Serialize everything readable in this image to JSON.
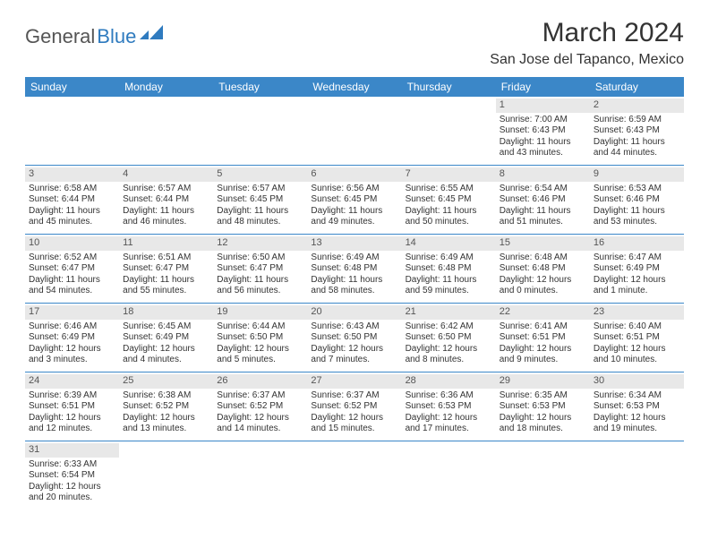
{
  "header": {
    "logo_general": "General",
    "logo_blue": "Blue",
    "month_title": "March 2024",
    "location": "San Jose del Tapanco, Mexico"
  },
  "style": {
    "header_bg": "#3b87c8",
    "header_text": "#ffffff",
    "daynum_bg": "#e8e8e8",
    "row_border": "#3b87c8",
    "text_color": "#333333"
  },
  "weekdays": [
    "Sunday",
    "Monday",
    "Tuesday",
    "Wednesday",
    "Thursday",
    "Friday",
    "Saturday"
  ],
  "weeks": [
    [
      null,
      null,
      null,
      null,
      null,
      {
        "n": "1",
        "sr": "Sunrise: 7:00 AM",
        "ss": "Sunset: 6:43 PM",
        "d1": "Daylight: 11 hours",
        "d2": "and 43 minutes."
      },
      {
        "n": "2",
        "sr": "Sunrise: 6:59 AM",
        "ss": "Sunset: 6:43 PM",
        "d1": "Daylight: 11 hours",
        "d2": "and 44 minutes."
      }
    ],
    [
      {
        "n": "3",
        "sr": "Sunrise: 6:58 AM",
        "ss": "Sunset: 6:44 PM",
        "d1": "Daylight: 11 hours",
        "d2": "and 45 minutes."
      },
      {
        "n": "4",
        "sr": "Sunrise: 6:57 AM",
        "ss": "Sunset: 6:44 PM",
        "d1": "Daylight: 11 hours",
        "d2": "and 46 minutes."
      },
      {
        "n": "5",
        "sr": "Sunrise: 6:57 AM",
        "ss": "Sunset: 6:45 PM",
        "d1": "Daylight: 11 hours",
        "d2": "and 48 minutes."
      },
      {
        "n": "6",
        "sr": "Sunrise: 6:56 AM",
        "ss": "Sunset: 6:45 PM",
        "d1": "Daylight: 11 hours",
        "d2": "and 49 minutes."
      },
      {
        "n": "7",
        "sr": "Sunrise: 6:55 AM",
        "ss": "Sunset: 6:45 PM",
        "d1": "Daylight: 11 hours",
        "d2": "and 50 minutes."
      },
      {
        "n": "8",
        "sr": "Sunrise: 6:54 AM",
        "ss": "Sunset: 6:46 PM",
        "d1": "Daylight: 11 hours",
        "d2": "and 51 minutes."
      },
      {
        "n": "9",
        "sr": "Sunrise: 6:53 AM",
        "ss": "Sunset: 6:46 PM",
        "d1": "Daylight: 11 hours",
        "d2": "and 53 minutes."
      }
    ],
    [
      {
        "n": "10",
        "sr": "Sunrise: 6:52 AM",
        "ss": "Sunset: 6:47 PM",
        "d1": "Daylight: 11 hours",
        "d2": "and 54 minutes."
      },
      {
        "n": "11",
        "sr": "Sunrise: 6:51 AM",
        "ss": "Sunset: 6:47 PM",
        "d1": "Daylight: 11 hours",
        "d2": "and 55 minutes."
      },
      {
        "n": "12",
        "sr": "Sunrise: 6:50 AM",
        "ss": "Sunset: 6:47 PM",
        "d1": "Daylight: 11 hours",
        "d2": "and 56 minutes."
      },
      {
        "n": "13",
        "sr": "Sunrise: 6:49 AM",
        "ss": "Sunset: 6:48 PM",
        "d1": "Daylight: 11 hours",
        "d2": "and 58 minutes."
      },
      {
        "n": "14",
        "sr": "Sunrise: 6:49 AM",
        "ss": "Sunset: 6:48 PM",
        "d1": "Daylight: 11 hours",
        "d2": "and 59 minutes."
      },
      {
        "n": "15",
        "sr": "Sunrise: 6:48 AM",
        "ss": "Sunset: 6:48 PM",
        "d1": "Daylight: 12 hours",
        "d2": "and 0 minutes."
      },
      {
        "n": "16",
        "sr": "Sunrise: 6:47 AM",
        "ss": "Sunset: 6:49 PM",
        "d1": "Daylight: 12 hours",
        "d2": "and 1 minute."
      }
    ],
    [
      {
        "n": "17",
        "sr": "Sunrise: 6:46 AM",
        "ss": "Sunset: 6:49 PM",
        "d1": "Daylight: 12 hours",
        "d2": "and 3 minutes."
      },
      {
        "n": "18",
        "sr": "Sunrise: 6:45 AM",
        "ss": "Sunset: 6:49 PM",
        "d1": "Daylight: 12 hours",
        "d2": "and 4 minutes."
      },
      {
        "n": "19",
        "sr": "Sunrise: 6:44 AM",
        "ss": "Sunset: 6:50 PM",
        "d1": "Daylight: 12 hours",
        "d2": "and 5 minutes."
      },
      {
        "n": "20",
        "sr": "Sunrise: 6:43 AM",
        "ss": "Sunset: 6:50 PM",
        "d1": "Daylight: 12 hours",
        "d2": "and 7 minutes."
      },
      {
        "n": "21",
        "sr": "Sunrise: 6:42 AM",
        "ss": "Sunset: 6:50 PM",
        "d1": "Daylight: 12 hours",
        "d2": "and 8 minutes."
      },
      {
        "n": "22",
        "sr": "Sunrise: 6:41 AM",
        "ss": "Sunset: 6:51 PM",
        "d1": "Daylight: 12 hours",
        "d2": "and 9 minutes."
      },
      {
        "n": "23",
        "sr": "Sunrise: 6:40 AM",
        "ss": "Sunset: 6:51 PM",
        "d1": "Daylight: 12 hours",
        "d2": "and 10 minutes."
      }
    ],
    [
      {
        "n": "24",
        "sr": "Sunrise: 6:39 AM",
        "ss": "Sunset: 6:51 PM",
        "d1": "Daylight: 12 hours",
        "d2": "and 12 minutes."
      },
      {
        "n": "25",
        "sr": "Sunrise: 6:38 AM",
        "ss": "Sunset: 6:52 PM",
        "d1": "Daylight: 12 hours",
        "d2": "and 13 minutes."
      },
      {
        "n": "26",
        "sr": "Sunrise: 6:37 AM",
        "ss": "Sunset: 6:52 PM",
        "d1": "Daylight: 12 hours",
        "d2": "and 14 minutes."
      },
      {
        "n": "27",
        "sr": "Sunrise: 6:37 AM",
        "ss": "Sunset: 6:52 PM",
        "d1": "Daylight: 12 hours",
        "d2": "and 15 minutes."
      },
      {
        "n": "28",
        "sr": "Sunrise: 6:36 AM",
        "ss": "Sunset: 6:53 PM",
        "d1": "Daylight: 12 hours",
        "d2": "and 17 minutes."
      },
      {
        "n": "29",
        "sr": "Sunrise: 6:35 AM",
        "ss": "Sunset: 6:53 PM",
        "d1": "Daylight: 12 hours",
        "d2": "and 18 minutes."
      },
      {
        "n": "30",
        "sr": "Sunrise: 6:34 AM",
        "ss": "Sunset: 6:53 PM",
        "d1": "Daylight: 12 hours",
        "d2": "and 19 minutes."
      }
    ],
    [
      {
        "n": "31",
        "sr": "Sunrise: 6:33 AM",
        "ss": "Sunset: 6:54 PM",
        "d1": "Daylight: 12 hours",
        "d2": "and 20 minutes."
      },
      null,
      null,
      null,
      null,
      null,
      null
    ]
  ]
}
